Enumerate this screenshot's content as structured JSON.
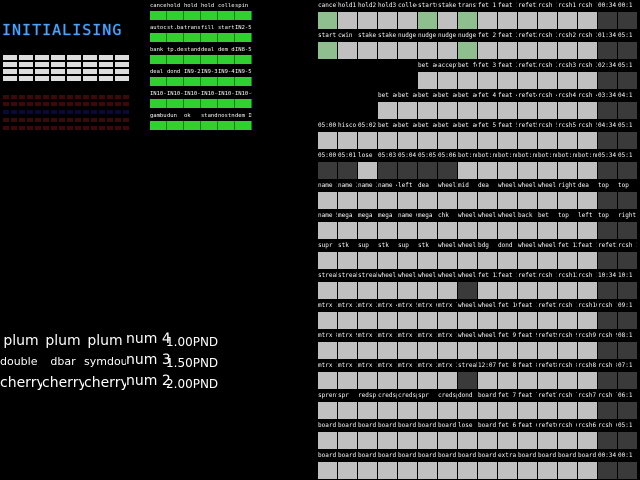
{
  "status": {
    "init_text": "INITIALISING"
  },
  "left_panel": {
    "rows": [
      [
        "cancel",
        "hold 1",
        "hold 2",
        "hold 3",
        "collect",
        "spin"
      ],
      [
        "autochg",
        "st.bank",
        "transfer",
        "fill",
        "start",
        "IN2-5"
      ],
      [
        "bank",
        "tp.deal",
        "stand",
        "deal",
        "dem dea",
        "IN8-5"
      ],
      [
        "deal",
        "dond",
        "IN9-2",
        "IN9-3",
        "IN9-4",
        "IN9-5"
      ],
      [
        "IN10-1",
        "IN10-2",
        "IN10-3",
        "IN10-4",
        "IN10-5",
        "IN10-6"
      ],
      [
        "gambul",
        "dun",
        "ok",
        "stand",
        "nostnd",
        "dem IN8-5"
      ]
    ]
  },
  "reels": {
    "rows": [
      {
        "symbols": [
          "plum",
          "plum",
          "plum"
        ],
        "num": "num 4",
        "price": "1.00PND"
      },
      {
        "symbols": [
          "double bar",
          "dbar",
          "symdouble bar"
        ],
        "num": "num 3",
        "price": "1.50PND"
      },
      {
        "symbols": [
          "cherry",
          "cherry",
          "cherry"
        ],
        "num": "num 2",
        "price": "2.00PND"
      }
    ]
  },
  "big_grid": {
    "rows": [
      {
        "cells": [
          "cancel",
          "hold1",
          "hold2",
          "hold3",
          "collect",
          "startup",
          "stake",
          "transfer",
          "fet 1",
          "feat 1",
          "refet1",
          "rcsh 1",
          "rcsh1",
          "rcsh 1:1",
          "00:34",
          "00:1"
        ]
      },
      {
        "cells": [
          "start",
          "cwin",
          "stake",
          "stake",
          "nudge",
          "nudge",
          "nudge",
          "nudge",
          "fet 2",
          "feat 2",
          "refet2",
          "rcsh 2",
          "rcsh2",
          "rcsh 2:1",
          "01:34",
          "05:1"
        ]
      },
      {
        "cells": [
          "",
          "",
          "",
          "",
          "",
          "bet ad",
          "accept",
          "bet fet",
          "fet 3",
          "feat 3",
          "refet3",
          "rcsh 3",
          "rcsh3",
          "rcsh 3:1",
          "02:34",
          "05:1"
        ]
      },
      {
        "cells": [
          "",
          "",
          "",
          "bet ad2",
          "bet ad3",
          "bet ad4",
          "bet ad5",
          "bet ad6",
          "fet 4",
          "feat 4",
          "refet4",
          "rcsh 4",
          "rcsh4",
          "rcsh 4:1",
          "03:34",
          "04:1"
        ]
      },
      {
        "cells": [
          "05:00",
          "hiscore",
          "05:02",
          "bet ad7",
          "bet ad8",
          "bet ad9",
          "bet ad10",
          "bet ad11",
          "fet 5",
          "feat 5",
          "refet5",
          "rcsh 5",
          "rcsh5",
          "rcsh 5:1",
          "04:34",
          "05:1"
        ]
      },
      {
        "cells": [
          "05:00",
          "05:01",
          "lose",
          "05:03",
          "05:04",
          "05:05",
          "05:06",
          "bot:nm",
          "bot:nm",
          "bot:nm",
          "bot:nm",
          "bot:nm",
          "bot:nm",
          "bot:nm",
          "05:34",
          "05:1"
        ]
      },
      {
        "cells": [
          "name 1",
          "name 2",
          "name 3",
          "name 4",
          "left",
          "dea",
          "wheel1",
          "mid",
          "dea",
          "wheel 1",
          "wheel",
          "wheel 2",
          "right",
          "dea",
          "top",
          "top"
        ]
      },
      {
        "cells": [
          "name 5",
          "mega",
          "mega",
          "mega",
          "name 6",
          "mega",
          "chk",
          "wheel 4",
          "wheel 3",
          "wheel 10",
          "back",
          "bet",
          "top",
          "left",
          "top",
          "right"
        ]
      },
      {
        "cells": [
          "supr",
          "stk",
          "sup",
          "stk",
          "sup",
          "stk",
          "wheel 5",
          "wheel 5",
          "bdg",
          "dond",
          "wheel 17",
          "wheel 6",
          "fet 12",
          "feat 12",
          "refet12",
          "rcsh 12"
        ]
      },
      {
        "cells": [
          "streak 1",
          "streak",
          "streak",
          "wheel 7",
          "wheel 8",
          "wheel 9",
          "wheel 18",
          "wheel 18",
          "fet 13",
          "feat 13",
          "refet13",
          "rcsh 13",
          "rcsh13",
          "rcsh 13:1",
          "10:34",
          "10:1"
        ]
      },
      {
        "cells": [
          "mtrx 1",
          "mtrx 2",
          "mtrx 3",
          "mtrx 4",
          "mtrx 5",
          "mtrx 6",
          "mtrx 7",
          "wheel 19",
          "wheel 18",
          "fet 10",
          "feat 10",
          "refet10",
          "rcsh 10",
          "rcsh10",
          "rcsh 10:1",
          "09:1"
        ]
      },
      {
        "cells": [
          "mtrx 8",
          "mtrx 9",
          "mtrx 10",
          "mtrx 11",
          "mtrx 12",
          "mtrx 13",
          "mtrx 14",
          "wheel 18",
          "wheel 19",
          "fet 9",
          "feat 9",
          "refet9",
          "rcsh 9",
          "rcsh9",
          "rcsh 9:1",
          "08:1"
        ]
      },
      {
        "cells": [
          "mtrx 15",
          "mtrx 16",
          "mtrx 17",
          "mtrx 18",
          "mtrx 19",
          "mtrx 20",
          "mtrx 21",
          "streak",
          "12:07",
          "fet 8",
          "feat 8",
          "refet8",
          "rcsh 8",
          "rcsh8",
          "rcsh 8:1",
          "07:1"
        ]
      },
      {
        "cells": [
          "sprent",
          "spr",
          "redspr",
          "credspr",
          "credspr",
          "spr",
          "credspr",
          "dond",
          "board",
          "fet 7",
          "feat 7",
          "refet7",
          "rcsh 7",
          "rcsh7",
          "rcsh 7:1",
          "06:1"
        ]
      },
      {
        "cells": [
          "board 1",
          "board 2",
          "board 3",
          "board 4",
          "board 5",
          "board 6",
          "board 7",
          "lose",
          "board 8",
          "fet 6",
          "feat 6",
          "refet6",
          "rcsh 6",
          "rcsh6",
          "rcsh 6:1",
          "05:1"
        ]
      },
      {
        "cells": [
          "board 9",
          "board 10",
          "board 11",
          "board 12",
          "board 13",
          "board 14",
          "board 15",
          "board 16",
          "board 17",
          "extra",
          "board 18",
          "board 19",
          "board 20",
          "board 21",
          "00:34",
          "00:1"
        ]
      }
    ]
  }
}
